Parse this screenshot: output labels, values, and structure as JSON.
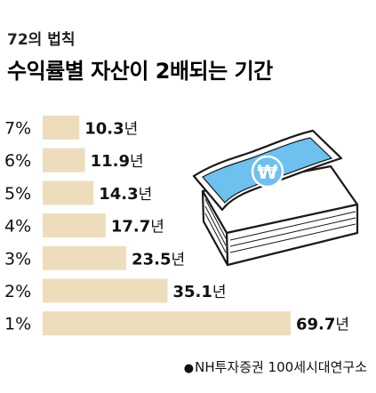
{
  "header": {
    "subtitle": "72의 법칙",
    "title": "수익률별 자산이 2배되는 기간"
  },
  "source": {
    "bullet": "●",
    "text": "NH투자증권 100세시대연구소"
  },
  "colors": {
    "bar": "#EEDDBD",
    "bill_blue": "#6EC0EE",
    "bill_border": "#1A1A1A",
    "text": "#111111"
  },
  "icons": [
    "money-stack-icon",
    "won-sign-icon"
  ],
  "chart_data": {
    "type": "bar",
    "orientation": "horizontal",
    "title": "수익률별 자산이 2배되는 기간",
    "subtitle": "72의 법칙",
    "categories": [
      "7%",
      "6%",
      "5%",
      "4%",
      "3%",
      "2%",
      "1%"
    ],
    "values": [
      10.3,
      11.9,
      14.3,
      17.7,
      23.5,
      35.1,
      69.7
    ],
    "value_unit": "년",
    "xlim": [
      0,
      69.7
    ],
    "grid": false,
    "legend": "none"
  }
}
